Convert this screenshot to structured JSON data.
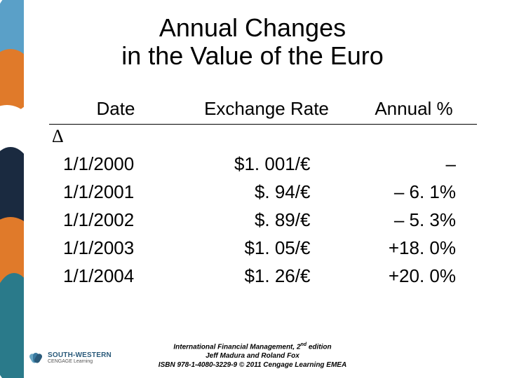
{
  "title_line1": "Annual Changes",
  "title_line2": "in the Value of the Euro",
  "columns": {
    "date": "Date",
    "rate": "Exchange Rate",
    "pct": "Annual %"
  },
  "delta": "Δ",
  "rows": [
    {
      "date": "1/1/2000",
      "rate": "$1. 001/€",
      "pct": "–"
    },
    {
      "date": "1/1/2001",
      "rate": "$. 94/€",
      "pct": "– 6. 1%"
    },
    {
      "date": "1/1/2002",
      "rate": "$. 89/€",
      "pct": "– 5. 3%"
    },
    {
      "date": "1/1/2003",
      "rate": "$1. 05/€",
      "pct": "+18. 0%"
    },
    {
      "date": "1/1/2004",
      "rate": "$1. 26/€",
      "pct": "+20. 0%"
    }
  ],
  "footer": {
    "line1_a": "International Financial Management, 2",
    "line1_sup": "nd",
    "line1_b": " edition",
    "line2": "Jeff Madura and Roland Fox",
    "line3": "ISBN 978-1-4080-3229-9 © 2011 Cengage Learning EMEA"
  },
  "logo": {
    "primary": "SOUTH-WESTERN",
    "secondary": "CENGAGE Learning"
  },
  "strip_colors": {
    "bg": "#5aa0c8",
    "orange": "#e07a2a",
    "white": "#ffffff",
    "dark": "#1a2a40",
    "teal": "#2a7a8a"
  },
  "logo_colors": [
    "#6aa7c4",
    "#3a7aa0",
    "#2a5a7a"
  ]
}
